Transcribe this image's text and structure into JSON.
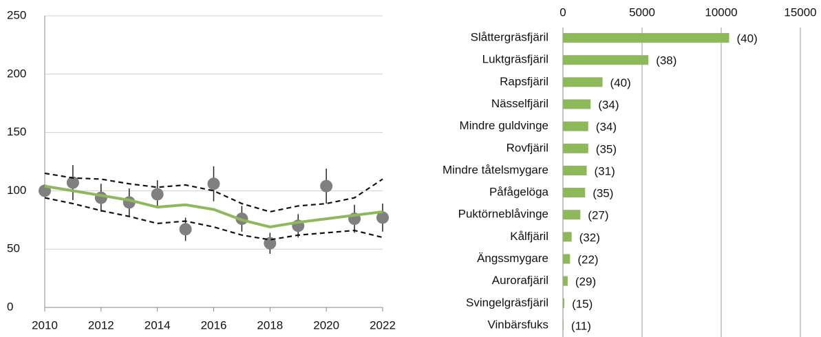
{
  "chart_data": [
    {
      "type": "line",
      "x": [
        2010,
        2011,
        2012,
        2013,
        2014,
        2015,
        2016,
        2017,
        2018,
        2019,
        2020,
        2021,
        2022
      ],
      "xlim": [
        2010,
        2022
      ],
      "xticks": [
        2010,
        2012,
        2014,
        2016,
        2018,
        2020,
        2022
      ],
      "ylim": [
        0,
        250
      ],
      "yticks": [
        0,
        50,
        100,
        150,
        200,
        250
      ],
      "grid": true,
      "series": [
        {
          "kind": "points",
          "color": "#808080",
          "error_color": "#222222",
          "values": [
            100,
            107,
            94,
            90,
            97,
            67,
            106,
            76,
            55,
            70,
            104,
            76,
            77
          ],
          "errors": [
            null,
            15,
            12,
            12,
            12,
            10,
            15,
            11,
            9,
            10,
            15,
            12,
            12
          ]
        },
        {
          "kind": "trend",
          "color": "#8db95a",
          "values": [
            104,
            100,
            96,
            92,
            86,
            88,
            84,
            75,
            69,
            73,
            76,
            79,
            82
          ]
        },
        {
          "kind": "bound",
          "color": "#111111",
          "values": [
            115,
            111,
            110,
            106,
            103,
            105,
            100,
            89,
            82,
            87,
            89,
            94,
            110
          ]
        },
        {
          "kind": "bound",
          "color": "#111111",
          "values": [
            94,
            89,
            83,
            78,
            72,
            74,
            69,
            62,
            58,
            62,
            64,
            66,
            60
          ]
        }
      ]
    },
    {
      "type": "hbar",
      "color": "#8db95a",
      "categories": [
        "Slåttergräsfjäril",
        "Luktgräsfjäril",
        "Rapsfjäril",
        "Nässelfjäril",
        "Mindre guldvinge",
        "Rovfjäril",
        "Mindre tåtelsmygare",
        "Påfågelöga",
        "Puktörneblåvinge",
        "Kålfjäril",
        "Ängssmygare",
        "Aurorafjäril",
        "Svingelgräsfjäril",
        "Vinbärsfuks"
      ],
      "values": [
        10500,
        5400,
        2500,
        1750,
        1600,
        1600,
        1500,
        1400,
        1100,
        550,
        450,
        300,
        90,
        40
      ],
      "site_counts": [
        "(40)",
        "(38)",
        "(40)",
        "(34)",
        "(34)",
        "(35)",
        "(31)",
        "(35)",
        "(27)",
        "(32)",
        "(22)",
        "(29)",
        "(15)",
        "(11)"
      ],
      "xlim": [
        0,
        15000
      ],
      "xticks": [
        0,
        5000,
        10000,
        15000
      ],
      "grid": true
    }
  ]
}
